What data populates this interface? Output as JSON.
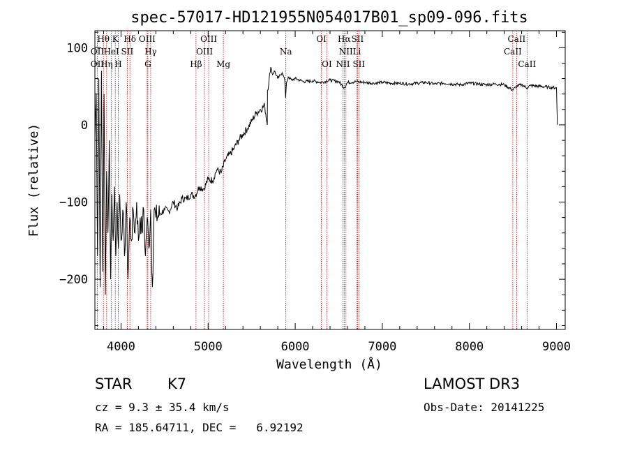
{
  "chart_data": {
    "type": "line",
    "title": "spec-57017-HD121955N054017B01_sp09-096.fits",
    "xlabel": "Wavelength (Å)",
    "ylabel": "Flux (relative)",
    "xlim": [
      3700,
      9100
    ],
    "ylim": [
      -265,
      122
    ],
    "xticks": [
      4000,
      5000,
      6000,
      7000,
      8000,
      9000
    ],
    "xtick_labels": [
      "4000",
      "5000",
      "6000",
      "7000",
      "8000",
      "9000"
    ],
    "yticks": [
      100,
      0,
      -100,
      -200
    ],
    "ytick_labels": [
      "100",
      "0",
      "−100",
      "−200"
    ],
    "series": [
      {
        "name": "flux",
        "x": [
          3700,
          3715,
          3730,
          3745,
          3760,
          3775,
          3790,
          3805,
          3820,
          3835,
          3850,
          3865,
          3880,
          3895,
          3910,
          3925,
          3940,
          3955,
          3970,
          3985,
          4000,
          4020,
          4040,
          4060,
          4080,
          4100,
          4120,
          4140,
          4160,
          4180,
          4200,
          4220,
          4240,
          4260,
          4280,
          4300,
          4320,
          4340,
          4360,
          4380,
          4400,
          4450,
          4500,
          4550,
          4600,
          4650,
          4700,
          4750,
          4800,
          4850,
          4900,
          4950,
          5000,
          5050,
          5100,
          5150,
          5200,
          5250,
          5300,
          5350,
          5400,
          5450,
          5500,
          5550,
          5600,
          5650,
          5680,
          5682,
          5720,
          5740,
          5760,
          5800,
          5850,
          5880,
          5890,
          5900,
          5920,
          5960,
          6000,
          6050,
          6100,
          6200,
          6300,
          6400,
          6500,
          6563,
          6600,
          6700,
          6800,
          6900,
          7000,
          7100,
          7200,
          7300,
          7400,
          7500,
          7600,
          7700,
          7800,
          7900,
          8000,
          8100,
          8200,
          8300,
          8400,
          8498,
          8542,
          8600,
          8662,
          8700,
          8800,
          8900,
          9000,
          9010
        ],
        "y": [
          -20,
          40,
          -170,
          60,
          -210,
          70,
          -190,
          40,
          -220,
          -60,
          -140,
          -20,
          -200,
          -90,
          -150,
          -80,
          -170,
          -100,
          -160,
          -90,
          -150,
          -110,
          -170,
          -100,
          -200,
          -120,
          -150,
          -110,
          -140,
          -100,
          -150,
          -120,
          -140,
          -110,
          -170,
          -120,
          -160,
          -110,
          -210,
          -110,
          -120,
          -115,
          -110,
          -112,
          -100,
          -108,
          -95,
          -96,
          -90,
          -92,
          -80,
          -83,
          -70,
          -72,
          -58,
          -62,
          -45,
          -38,
          -30,
          -20,
          -12,
          -5,
          5,
          15,
          20,
          25,
          0,
          45,
          75,
          65,
          70,
          60,
          68,
          58,
          35,
          55,
          62,
          58,
          60,
          58,
          56,
          57,
          55,
          58,
          56,
          48,
          55,
          56,
          55,
          54,
          55,
          54,
          54,
          53,
          54,
          55,
          53,
          54,
          53,
          52,
          54,
          53,
          52,
          53,
          52,
          45,
          50,
          52,
          48,
          51,
          50,
          49,
          48,
          0
        ]
      }
    ],
    "emission_lines": [
      {
        "label": "OII",
        "wavelength": 3727
      },
      {
        "label": "Hθ",
        "wavelength": 3798
      },
      {
        "label": "Hη",
        "wavelength": 3835
      },
      {
        "label": "HeI",
        "wavelength": 3889
      },
      {
        "label": "K",
        "wavelength": 3934
      },
      {
        "label": "H",
        "wavelength": 3968
      },
      {
        "label": "SII",
        "wavelength": 4072
      },
      {
        "label": "Hδ",
        "wavelength": 4102
      },
      {
        "label": "OIII",
        "wavelength": 4300
      },
      {
        "label": "G",
        "wavelength": 4308
      },
      {
        "label": "Hγ",
        "wavelength": 4340
      },
      {
        "label": "Hβ",
        "wavelength": 4861
      },
      {
        "label": "OIII",
        "wavelength": 4959
      },
      {
        "label": "OIII",
        "wavelength": 5007
      },
      {
        "label": "Mg",
        "wavelength": 5175
      },
      {
        "label": "Na",
        "wavelength": 5893
      },
      {
        "label": "OI",
        "wavelength": 6300
      },
      {
        "label": "OI",
        "wavelength": 6363
      },
      {
        "label": "NII",
        "wavelength": 6548
      },
      {
        "label": "Hα",
        "wavelength": 6563
      },
      {
        "label": "NII",
        "wavelength": 6583
      },
      {
        "label": "Li",
        "wavelength": 6708
      },
      {
        "label": "SII",
        "wavelength": 6716
      },
      {
        "label": "SII",
        "wavelength": 6731
      },
      {
        "label": "CaII",
        "wavelength": 8498
      },
      {
        "label": "CaII",
        "wavelength": 8542
      },
      {
        "label": "CaII",
        "wavelength": 8662
      }
    ],
    "line_labels": [
      {
        "text": "OII",
        "wavelength": 3727,
        "row": 2
      },
      {
        "text": "OII",
        "wavelength": 3727,
        "row": 3
      },
      {
        "text": "Hθ",
        "wavelength": 3798,
        "row": 1
      },
      {
        "text": "HeI",
        "wavelength": 3889,
        "row": 2
      },
      {
        "text": "Hη",
        "wavelength": 3835,
        "row": 3
      },
      {
        "text": "K",
        "wavelength": 3934,
        "row": 1
      },
      {
        "text": "SII",
        "wavelength": 4072,
        "row": 2
      },
      {
        "text": "H",
        "wavelength": 3968,
        "row": 3
      },
      {
        "text": "Hδ",
        "wavelength": 4102,
        "row": 1
      },
      {
        "text": "OIII",
        "wavelength": 4300,
        "row": 1
      },
      {
        "text": "Hγ",
        "wavelength": 4340,
        "row": 2
      },
      {
        "text": "G",
        "wavelength": 4308,
        "row": 3
      },
      {
        "text": "Hβ",
        "wavelength": 4861,
        "row": 3
      },
      {
        "text": "OIII",
        "wavelength": 5007,
        "row": 1
      },
      {
        "text": "OIII",
        "wavelength": 4959,
        "row": 2
      },
      {
        "text": "Mg",
        "wavelength": 5175,
        "row": 3
      },
      {
        "text": "Na",
        "wavelength": 5893,
        "row": 2
      },
      {
        "text": "OI",
        "wavelength": 6300,
        "row": 1
      },
      {
        "text": "OI",
        "wavelength": 6363,
        "row": 3
      },
      {
        "text": "Hα",
        "wavelength": 6563,
        "row": 1
      },
      {
        "text": "SII",
        "wavelength": 6716,
        "row": 1
      },
      {
        "text": "NII",
        "wavelength": 6583,
        "row": 2
      },
      {
        "text": "Li",
        "wavelength": 6708,
        "row": 2
      },
      {
        "text": "NII",
        "wavelength": 6548,
        "row": 3
      },
      {
        "text": "SII",
        "wavelength": 6731,
        "row": 3
      },
      {
        "text": "CaII",
        "wavelength": 8542,
        "row": 1
      },
      {
        "text": "CaII",
        "wavelength": 8498,
        "row": 2
      },
      {
        "text": "CaII",
        "wavelength": 8662,
        "row": 3
      }
    ]
  },
  "info": {
    "class_label": "STAR",
    "subclass": "K7",
    "survey": "LAMOST DR3",
    "cz": "cz = 9.3 ± 35.4 km/s",
    "obs_date": "Obs-Date: 20141225",
    "coords": "RA = 185.64711, DEC =   6.92192"
  },
  "colors": {
    "spectrum": "#000000",
    "emission_line": "#cc0000",
    "axes": "#000000"
  }
}
